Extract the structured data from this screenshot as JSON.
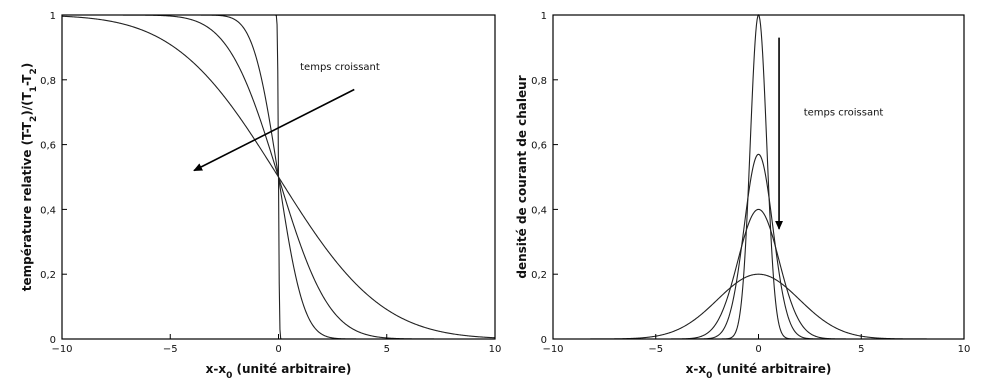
{
  "chart_data": [
    {
      "type": "line",
      "title": "",
      "xlabel_main": "x-x",
      "xlabel_sub": "0",
      "xlabel_rest": " (unité arbitraire)",
      "ylabel_p1": "température relative (T-T",
      "ylabel_s1": "2",
      "ylabel_p2": ")/(T",
      "ylabel_s2": "1",
      "ylabel_p3": "-T",
      "ylabel_s3": "2",
      "ylabel_p4": ")",
      "xlim": [
        -10,
        10
      ],
      "ylim": [
        0,
        1
      ],
      "x_ticks": [
        "−10",
        "−5",
        "0",
        "5",
        "10"
      ],
      "x_tick_values": [
        -10,
        -5,
        0,
        5,
        10
      ],
      "y_ticks": [
        "0",
        "0,2",
        "0,4",
        "0,6",
        "0,8",
        "1"
      ],
      "y_tick_values": [
        0,
        0.2,
        0.4,
        0.6,
        0.8,
        1
      ],
      "series": [
        {
          "kind": "erfc",
          "sigma": 0.05
        },
        {
          "kind": "erfc",
          "sigma": 1.3
        },
        {
          "kind": "erfc",
          "sigma": 2.6
        },
        {
          "kind": "erfc",
          "sigma": 5.3
        }
      ],
      "annotation": {
        "text": "temps croissant",
        "x": 1.0,
        "y": 0.83
      },
      "arrow": {
        "from": [
          3.5,
          0.77
        ],
        "to": [
          -3.9,
          0.52
        ]
      },
      "grid": false
    },
    {
      "type": "line",
      "title": "",
      "xlabel_main": "x-x",
      "xlabel_sub": "0",
      "xlabel_rest": " (unité arbitraire)",
      "ylabel": "densité de courant de chaleur",
      "xlim": [
        -10,
        10
      ],
      "ylim": [
        0,
        1
      ],
      "x_ticks": [
        "−10",
        "−5",
        "0",
        "5",
        "10"
      ],
      "x_tick_values": [
        -10,
        -5,
        0,
        5,
        10
      ],
      "y_ticks": [
        "0",
        "0,2",
        "0,4",
        "0,6",
        "0,8",
        "1"
      ],
      "y_tick_values": [
        0,
        0.2,
        0.4,
        0.6,
        0.8,
        1
      ],
      "series": [
        {
          "kind": "gauss",
          "peak": 1.0,
          "sigma": 0.4
        },
        {
          "kind": "gauss",
          "peak": 0.57,
          "sigma": 0.7
        },
        {
          "kind": "gauss",
          "peak": 0.4,
          "sigma": 1.0
        },
        {
          "kind": "gauss",
          "peak": 0.2,
          "sigma": 2.0
        }
      ],
      "annotation": {
        "text": "temps croissant",
        "x": 2.2,
        "y": 0.69
      },
      "arrow": {
        "from": [
          1.0,
          0.93
        ],
        "to": [
          1.0,
          0.34
        ]
      },
      "grid": false
    }
  ]
}
